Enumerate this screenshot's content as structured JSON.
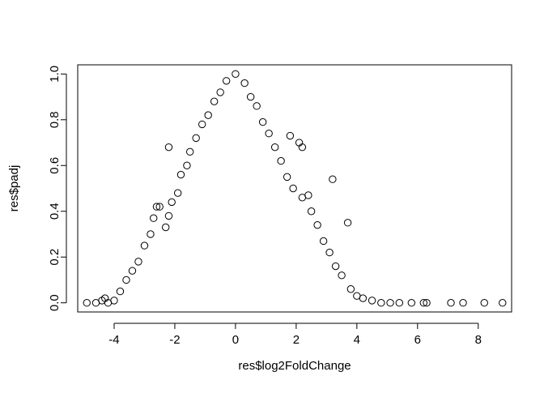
{
  "chart_data": {
    "type": "scatter",
    "title": "",
    "xlabel": "res$log2FoldChange",
    "ylabel": "res$padj",
    "xlim": [
      -5.2,
      9.1
    ],
    "ylim": [
      -0.04,
      1.04
    ],
    "grid": false,
    "legend": "none",
    "x_ticks": [
      -4,
      -2,
      0,
      2,
      4,
      6,
      8
    ],
    "x_tick_labels": [
      "-4",
      "-2",
      "0",
      "2",
      "4",
      "6",
      "8"
    ],
    "y_ticks": [
      0.0,
      0.2,
      0.4,
      0.6,
      0.8,
      1.0
    ],
    "y_tick_labels": [
      "0.0",
      "0.2",
      "0.4",
      "0.6",
      "0.8",
      "1.0"
    ],
    "marker": "open-circle",
    "color": "#000000",
    "series": [
      {
        "points": [
          [
            -4.9,
            0.0
          ],
          [
            -4.6,
            0.0
          ],
          [
            -4.4,
            0.01
          ],
          [
            -4.3,
            0.02
          ],
          [
            -4.2,
            0.0
          ],
          [
            -4.0,
            0.01
          ],
          [
            -3.8,
            0.05
          ],
          [
            -3.6,
            0.1
          ],
          [
            -3.4,
            0.14
          ],
          [
            -3.2,
            0.18
          ],
          [
            -3.0,
            0.25
          ],
          [
            -2.8,
            0.3
          ],
          [
            -2.7,
            0.37
          ],
          [
            -2.6,
            0.42
          ],
          [
            -2.5,
            0.42
          ],
          [
            -2.3,
            0.33
          ],
          [
            -2.2,
            0.38
          ],
          [
            -2.1,
            0.44
          ],
          [
            -2.2,
            0.68
          ],
          [
            -1.9,
            0.48
          ],
          [
            -1.8,
            0.56
          ],
          [
            -1.6,
            0.6
          ],
          [
            -1.5,
            0.66
          ],
          [
            -1.3,
            0.72
          ],
          [
            -1.1,
            0.78
          ],
          [
            -0.9,
            0.82
          ],
          [
            -0.7,
            0.88
          ],
          [
            -0.5,
            0.92
          ],
          [
            -0.3,
            0.97
          ],
          [
            0.0,
            1.0
          ],
          [
            0.3,
            0.96
          ],
          [
            0.5,
            0.9
          ],
          [
            0.7,
            0.86
          ],
          [
            0.9,
            0.79
          ],
          [
            1.1,
            0.74
          ],
          [
            1.3,
            0.68
          ],
          [
            1.5,
            0.62
          ],
          [
            1.8,
            0.73
          ],
          [
            2.1,
            0.7
          ],
          [
            2.2,
            0.68
          ],
          [
            1.7,
            0.55
          ],
          [
            1.9,
            0.5
          ],
          [
            2.2,
            0.46
          ],
          [
            2.4,
            0.47
          ],
          [
            2.5,
            0.4
          ],
          [
            2.7,
            0.34
          ],
          [
            2.9,
            0.27
          ],
          [
            3.1,
            0.22
          ],
          [
            3.2,
            0.54
          ],
          [
            3.3,
            0.16
          ],
          [
            3.5,
            0.12
          ],
          [
            3.7,
            0.35
          ],
          [
            3.8,
            0.06
          ],
          [
            4.0,
            0.03
          ],
          [
            4.2,
            0.02
          ],
          [
            4.5,
            0.01
          ],
          [
            4.8,
            0.0
          ],
          [
            5.1,
            0.0
          ],
          [
            5.4,
            0.0
          ],
          [
            5.8,
            0.0
          ],
          [
            6.2,
            0.0
          ],
          [
            6.3,
            0.0
          ],
          [
            7.1,
            0.0
          ],
          [
            7.5,
            0.0
          ],
          [
            8.2,
            0.0
          ],
          [
            8.8,
            0.0
          ]
        ]
      }
    ]
  }
}
